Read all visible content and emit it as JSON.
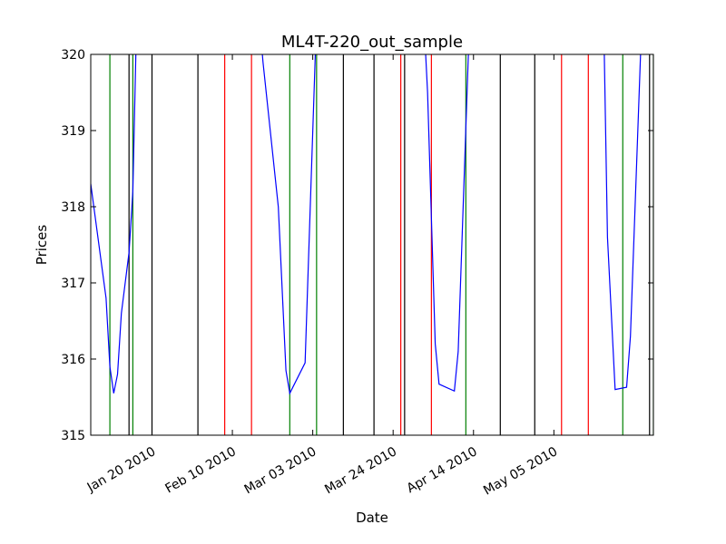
{
  "chart_data": {
    "type": "line",
    "title": "ML4T-220_out_sample",
    "xlabel": "Date",
    "ylabel": "Prices",
    "xlim": [
      "2010-01-04",
      "2010-05-31"
    ],
    "ylim": [
      315,
      320
    ],
    "grid": false,
    "y_ticks": [
      "315",
      "316",
      "317",
      "318",
      "319",
      "320"
    ],
    "x_ticks": [
      {
        "date": "2010-01-20",
        "label": "Jan 20 2010"
      },
      {
        "date": "2010-02-10",
        "label": "Feb 10 2010"
      },
      {
        "date": "2010-03-03",
        "label": "Mar 03 2010"
      },
      {
        "date": "2010-03-24",
        "label": "Mar 24 2010"
      },
      {
        "date": "2010-04-14",
        "label": "Apr 14 2010"
      },
      {
        "date": "2010-05-05",
        "label": "May 05 2010"
      }
    ],
    "series": [
      {
        "color": "#0000ff",
        "points": [
          {
            "x": "2010-01-04",
            "y": 318.3
          },
          {
            "x": "2010-01-08",
            "y": 316.8
          },
          {
            "x": "2010-01-09",
            "y": 315.9
          },
          {
            "x": "2010-01-10",
            "y": 315.55
          },
          {
            "x": "2010-01-11",
            "y": 315.8
          },
          {
            "x": "2010-01-12",
            "y": 316.6
          },
          {
            "x": "2010-01-14",
            "y": 317.4
          },
          {
            "x": "2010-01-15",
            "y": 318.2
          },
          {
            "x": "2010-01-16",
            "y": 320.5
          },
          {
            "x": "2010-02-17",
            "y": 320.5
          },
          {
            "x": "2010-02-18",
            "y": 319.9
          },
          {
            "x": "2010-02-22",
            "y": 318.0
          },
          {
            "x": "2010-02-24",
            "y": 315.85
          },
          {
            "x": "2010-02-25",
            "y": 315.55
          },
          {
            "x": "2010-03-01",
            "y": 315.95
          },
          {
            "x": "2010-03-04",
            "y": 320.5
          },
          {
            "x": "2010-04-01",
            "y": 320.5
          },
          {
            "x": "2010-04-02",
            "y": 319.5
          },
          {
            "x": "2010-04-04",
            "y": 316.2
          },
          {
            "x": "2010-04-05",
            "y": 315.67
          },
          {
            "x": "2010-04-09",
            "y": 315.58
          },
          {
            "x": "2010-04-10",
            "y": 316.1
          },
          {
            "x": "2010-04-13",
            "y": 320.5
          },
          {
            "x": "2010-05-18",
            "y": 320.5
          },
          {
            "x": "2010-05-19",
            "y": 317.6
          },
          {
            "x": "2010-05-21",
            "y": 315.6
          },
          {
            "x": "2010-05-24",
            "y": 315.63
          },
          {
            "x": "2010-05-25",
            "y": 316.3
          },
          {
            "x": "2010-05-28",
            "y": 320.5
          }
        ]
      }
    ],
    "vertical_lines": [
      {
        "date": "2010-01-09",
        "color": "#008000"
      },
      {
        "date": "2010-01-14",
        "color": "#000000"
      },
      {
        "date": "2010-01-15",
        "color": "#008000"
      },
      {
        "date": "2010-01-20",
        "color": "#000000"
      },
      {
        "date": "2010-02-01",
        "color": "#000000"
      },
      {
        "date": "2010-02-08",
        "color": "#ff0000"
      },
      {
        "date": "2010-02-15",
        "color": "#ff0000"
      },
      {
        "date": "2010-02-25",
        "color": "#008000"
      },
      {
        "date": "2010-03-04",
        "color": "#008000"
      },
      {
        "date": "2010-03-11",
        "color": "#000000"
      },
      {
        "date": "2010-03-19",
        "color": "#000000"
      },
      {
        "date": "2010-03-26",
        "color": "#ff0000"
      },
      {
        "date": "2010-03-27",
        "color": "#000000"
      },
      {
        "date": "2010-04-03",
        "color": "#ff0000"
      },
      {
        "date": "2010-04-12",
        "color": "#008000"
      },
      {
        "date": "2010-04-21",
        "color": "#000000"
      },
      {
        "date": "2010-04-30",
        "color": "#000000"
      },
      {
        "date": "2010-05-07",
        "color": "#ff0000"
      },
      {
        "date": "2010-05-14",
        "color": "#ff0000"
      },
      {
        "date": "2010-05-23",
        "color": "#008000"
      },
      {
        "date": "2010-05-30",
        "color": "#000000"
      },
      {
        "date": "2010-05-31",
        "color": "#008000"
      }
    ]
  }
}
